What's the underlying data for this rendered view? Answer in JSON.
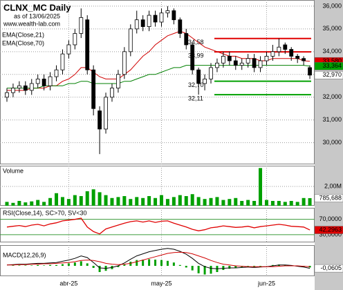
{
  "chart_data": [
    {
      "type": "candlestick",
      "title": "CLNX_MC Daily",
      "subtitle": "as of 13/06/2025",
      "source": "www.wealth-lab.com",
      "categories": [
        null,
        null,
        null,
        null,
        null,
        null,
        null,
        null,
        null,
        null,
        "abr-25",
        null,
        null,
        null,
        null,
        null,
        null,
        null,
        null,
        null,
        null,
        null,
        null,
        null,
        null,
        "may-25",
        null,
        null,
        null,
        null,
        null,
        null,
        null,
        null,
        null,
        null,
        null,
        null,
        null,
        null,
        null,
        null,
        "jun-25",
        null,
        null,
        null,
        null,
        null,
        null,
        null
      ],
      "open": [
        32.0,
        32.2,
        32.4,
        32.5,
        32.3,
        32.6,
        32.8,
        32.5,
        32.9,
        33.2,
        33.9,
        34.3,
        34.8,
        35.4,
        33.2,
        31.4,
        30.6,
        32.0,
        32.4,
        33.0,
        34.0,
        35.0,
        35.4,
        35.1,
        35.6,
        35.3,
        35.7,
        35.8,
        35.4,
        34.8,
        34.3,
        33.2,
        32.6,
        32.8,
        33.3,
        33.5,
        33.8,
        33.6,
        33.4,
        33.5,
        33.7,
        33.3,
        33.6,
        33.8,
        34.0,
        34.3,
        34.1,
        33.8,
        33.7,
        33.3
      ],
      "high": [
        32.4,
        32.6,
        32.7,
        32.7,
        32.8,
        33.0,
        33.0,
        33.1,
        33.4,
        34.1,
        34.5,
        35.0,
        35.9,
        35.6,
        33.4,
        31.6,
        32.2,
        32.6,
        33.2,
        34.2,
        35.2,
        35.8,
        35.6,
        35.8,
        35.8,
        35.9,
        36.0,
        35.9,
        35.5,
        35.0,
        34.4,
        33.3,
        33.0,
        33.5,
        33.7,
        34.0,
        34.0,
        33.8,
        33.7,
        33.9,
        33.9,
        33.8,
        34.0,
        34.3,
        34.58,
        34.4,
        34.2,
        33.9,
        33.8,
        33.4
      ],
      "low": [
        31.8,
        32.0,
        32.2,
        32.1,
        32.1,
        32.4,
        32.3,
        32.3,
        32.7,
        33.0,
        33.7,
        34.1,
        34.6,
        33.0,
        31.2,
        29.5,
        30.4,
        31.8,
        32.2,
        32.8,
        33.8,
        34.8,
        34.9,
        34.9,
        35.1,
        35.1,
        35.5,
        35.2,
        34.6,
        34.1,
        33.0,
        32.11,
        32.3,
        32.6,
        33.1,
        33.3,
        33.4,
        33.2,
        33.2,
        33.3,
        33.1,
        33.1,
        33.4,
        33.6,
        33.8,
        33.9,
        33.6,
        33.5,
        33.4,
        32.8
      ],
      "close": [
        32.2,
        32.4,
        32.5,
        32.3,
        32.6,
        32.8,
        32.5,
        32.9,
        33.2,
        33.9,
        34.3,
        34.8,
        35.5,
        33.2,
        31.5,
        30.6,
        32.0,
        32.4,
        33.0,
        34.0,
        35.0,
        35.4,
        35.1,
        35.6,
        35.3,
        35.7,
        35.8,
        35.4,
        34.8,
        34.3,
        33.2,
        32.6,
        32.8,
        33.3,
        33.5,
        33.8,
        33.6,
        33.4,
        33.5,
        33.7,
        33.3,
        33.6,
        33.8,
        34.0,
        34.2,
        34.1,
        33.8,
        33.7,
        33.6,
        32.97
      ],
      "series": [
        {
          "name": "EMA(Close,21)",
          "color": "#d00000",
          "values": [
            32.3,
            32.3,
            32.3,
            32.3,
            32.4,
            32.4,
            32.4,
            32.5,
            32.5,
            32.7,
            32.8,
            33.0,
            33.3,
            33.3,
            33.1,
            32.9,
            32.8,
            32.8,
            32.8,
            33.0,
            33.2,
            33.5,
            33.8,
            34.0,
            34.3,
            34.5,
            34.7,
            34.8,
            34.9,
            34.8,
            34.6,
            34.4,
            34.2,
            34.1,
            34.0,
            33.9,
            33.8,
            33.8,
            33.7,
            33.7,
            33.7,
            33.6,
            33.6,
            33.7,
            33.7,
            33.7,
            33.7,
            33.7,
            33.6,
            33.58
          ]
        },
        {
          "name": "EMA(Close,70)",
          "color": "#008000",
          "values": [
            32.4,
            32.4,
            32.4,
            32.4,
            32.4,
            32.4,
            32.5,
            32.5,
            32.5,
            32.5,
            32.6,
            32.6,
            32.7,
            32.7,
            32.6,
            32.6,
            32.6,
            32.6,
            32.6,
            32.7,
            32.7,
            32.8,
            32.9,
            33.0,
            33.0,
            33.1,
            33.2,
            33.3,
            33.3,
            33.4,
            33.4,
            33.4,
            33.4,
            33.4,
            33.4,
            33.4,
            33.4,
            33.4,
            33.4,
            33.4,
            33.4,
            33.4,
            33.4,
            33.4,
            33.4,
            33.4,
            33.4,
            33.4,
            33.4,
            33.364
          ]
        }
      ],
      "ylim": [
        29.05,
        36.27
      ],
      "yticks": [
        {
          "value": 36,
          "label": "36,000"
        },
        {
          "value": 35,
          "label": "35,000"
        },
        {
          "value": 34,
          "label": "34,000"
        },
        {
          "value": 33,
          "label": "33,000"
        },
        {
          "value": 32,
          "label": "32,000"
        },
        {
          "value": 31,
          "label": "31,000"
        },
        {
          "value": 30,
          "label": "30,000"
        }
      ],
      "levels": [
        {
          "value": 34.58,
          "label": "34,58",
          "color": "#e00000"
        },
        {
          "value": 33.99,
          "label": "33,99",
          "color": "#e00000"
        },
        {
          "value": 32.7,
          "label": "32,70",
          "color": "#00a000"
        },
        {
          "value": 32.11,
          "label": "32,11",
          "color": "#00a000"
        }
      ],
      "last_labels": [
        {
          "value": 33.58,
          "label": "33,580",
          "color": "#e00000"
        },
        {
          "value": 33.364,
          "label": "33,364",
          "color": "#00a000"
        },
        {
          "value": 32.97,
          "label": "32,970",
          "color": "#ffffff"
        }
      ],
      "grid": true
    },
    {
      "type": "bar",
      "title": "Volume",
      "color": "#00a000",
      "values": [
        400000,
        300000,
        500000,
        350000,
        450000,
        600000,
        400000,
        800000,
        1300000,
        900000,
        700000,
        1100000,
        1000000,
        1500000,
        1700000,
        1400000,
        1100000,
        800000,
        900000,
        1000000,
        700000,
        900000,
        800000,
        1000000,
        800000,
        1100000,
        700000,
        900000,
        1100000,
        1000000,
        1200000,
        900000,
        700000,
        800000,
        900000,
        600000,
        700000,
        800000,
        500000,
        600000,
        500000,
        3900000,
        600000,
        500000,
        500000,
        400000,
        500000,
        400000,
        800000,
        785688
      ],
      "ylim": [
        0,
        4140000
      ],
      "yticks": [
        {
          "value": 2000000,
          "label": "2,00M"
        }
      ],
      "last_labels": [
        {
          "value": 785688,
          "label": "785,688",
          "color": "#ffffff"
        }
      ],
      "grid": true
    },
    {
      "type": "line",
      "title": "RSI(Close,14), SC>70, SV<30",
      "color": "#e00000",
      "values": [
        50,
        52,
        54,
        51,
        55,
        57,
        53,
        58,
        61,
        66,
        68,
        70,
        73,
        50,
        38,
        32,
        45,
        50,
        55,
        60,
        64,
        66,
        63,
        66,
        62,
        65,
        66,
        60,
        55,
        50,
        44,
        40,
        43,
        48,
        50,
        53,
        51,
        49,
        50,
        52,
        48,
        51,
        53,
        55,
        57,
        55,
        52,
        51,
        50,
        42.2963
      ],
      "ylim": [
        10,
        100
      ],
      "yticks": [
        {
          "value": 70,
          "label": "70,0000"
        },
        {
          "value": 30,
          "label": "30,0000"
        }
      ],
      "level_color": "#3a9a3a",
      "last_labels": [
        {
          "value": 42.2963,
          "label": "42,2963",
          "color": "#e00000"
        }
      ],
      "grid": true
    },
    {
      "type": "macd",
      "title": "MACD(12,26,9)",
      "series": [
        {
          "color": "#000000",
          "values": [
            0.02,
            0.03,
            0.04,
            0.04,
            0.05,
            0.06,
            0.06,
            0.07,
            0.08,
            0.11,
            0.14,
            0.18,
            0.24,
            0.2,
            0.08,
            -0.05,
            -0.06,
            -0.04,
            0.0,
            0.07,
            0.16,
            0.24,
            0.29,
            0.34,
            0.37,
            0.4,
            0.42,
            0.4,
            0.35,
            0.28,
            0.18,
            0.06,
            -0.02,
            -0.06,
            -0.07,
            -0.06,
            -0.05,
            -0.05,
            -0.04,
            -0.03,
            -0.04,
            -0.03,
            -0.02,
            0.0,
            0.02,
            0.02,
            0.01,
            -0.01,
            -0.03,
            -0.0605
          ]
        },
        {
          "color": "#d00000",
          "values": [
            0.02,
            0.02,
            0.03,
            0.03,
            0.04,
            0.04,
            0.05,
            0.05,
            0.06,
            0.07,
            0.08,
            0.1,
            0.13,
            0.14,
            0.13,
            0.1,
            0.06,
            0.04,
            0.03,
            0.04,
            0.06,
            0.1,
            0.14,
            0.18,
            0.22,
            0.26,
            0.3,
            0.32,
            0.33,
            0.32,
            0.29,
            0.24,
            0.19,
            0.13,
            0.08,
            0.04,
            0.02,
            0.0,
            -0.01,
            -0.02,
            -0.02,
            -0.02,
            -0.02,
            -0.02,
            -0.01,
            0.0,
            0.0,
            0.0,
            -0.01,
            -0.02
          ]
        }
      ],
      "hist": [
        0,
        0.01,
        0.01,
        0.01,
        0.01,
        0.02,
        0.01,
        0.02,
        0.02,
        0.04,
        0.06,
        0.08,
        0.11,
        0.06,
        -0.05,
        -0.15,
        -0.12,
        -0.08,
        -0.03,
        0.03,
        0.1,
        0.14,
        0.15,
        0.16,
        0.15,
        0.14,
        0.12,
        0.08,
        0.02,
        -0.04,
        -0.11,
        -0.18,
        -0.21,
        -0.19,
        -0.15,
        -0.1,
        -0.07,
        -0.05,
        -0.03,
        -0.01,
        -0.02,
        -0.01,
        0,
        0.02,
        0.03,
        0.02,
        0.01,
        -0.01,
        -0.02,
        -0.0405
      ],
      "hist_color": "#00a000",
      "ylim": [
        -0.25,
        0.5
      ],
      "last_labels": [
        {
          "value": -0.0605,
          "label": "-0,0605",
          "color": "#ffffff"
        }
      ]
    }
  ]
}
